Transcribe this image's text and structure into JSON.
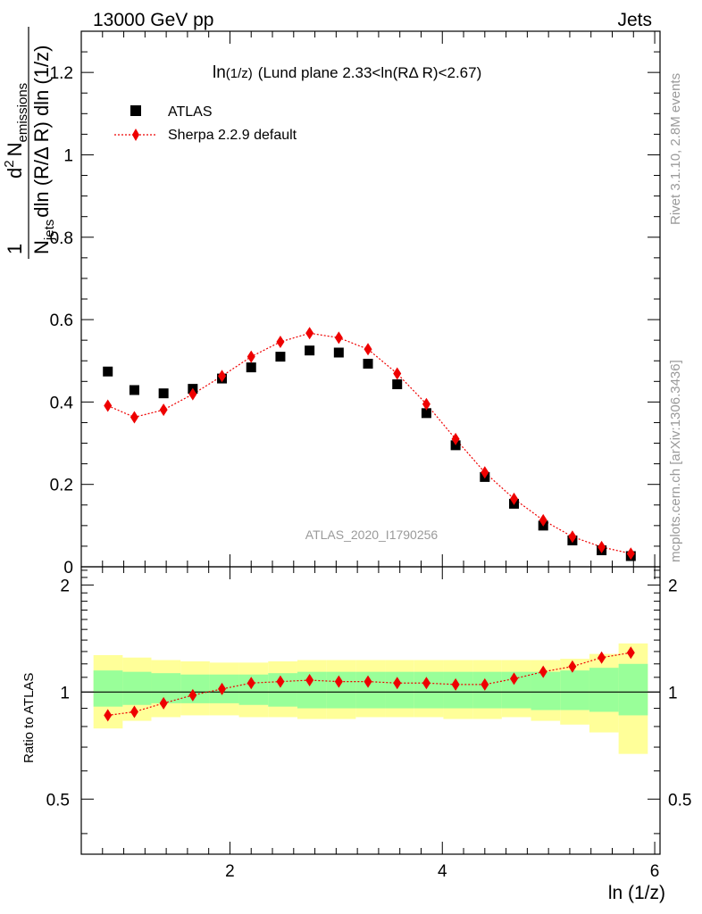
{
  "header": {
    "left": "13000 GeV pp",
    "right": "Jets"
  },
  "side": {
    "rivet": "Rivet 3.1.10,  2.8M events",
    "mcplots": "mcplots.cern.ch [arXiv:1306.3436]"
  },
  "chart_data": [
    {
      "type": "scatter",
      "title": "ln(1/z) (Lund plane 2.33<ln(RΔ R)<2.67)",
      "title_main": "ln",
      "title_sub": "(1/z)",
      "title_rest": "(Lund plane 2.33<ln(RΔ R)<2.67)",
      "xlabel": "ln (1/z)",
      "ylabel": {
        "one": "1",
        "njets": "N",
        "njets_sub": "jets",
        "den": "dln (R/Δ R) dln (1/z)",
        "num": "d",
        "num_sup": "2",
        "num_n": "N",
        "num_sub": "emissions"
      },
      "xlim": [
        0.6,
        6.05
      ],
      "ylim": [
        0,
        1.3
      ],
      "yticks": [
        0,
        0.2,
        0.4,
        0.6,
        0.8,
        1,
        1.2
      ],
      "ytick_labels": [
        "0",
        "0.2",
        "0.4",
        "0.6",
        "0.8",
        "1",
        "1.2"
      ],
      "watermark": "ATLAS_2020_I1790256",
      "legend_position": "top-left",
      "x": [
        0.85,
        1.1,
        1.375,
        1.65,
        1.925,
        2.2,
        2.475,
        2.75,
        3.025,
        3.3,
        3.575,
        3.85,
        4.125,
        4.4,
        4.675,
        4.95,
        5.225,
        5.5,
        5.775
      ],
      "series": [
        {
          "name": "ATLAS",
          "marker": "square",
          "color": "#000000",
          "values": [
            0.474,
            0.429,
            0.421,
            0.432,
            0.457,
            0.484,
            0.51,
            0.525,
            0.52,
            0.493,
            0.443,
            0.373,
            0.295,
            0.218,
            0.153,
            0.1,
            0.064,
            0.04,
            0.026
          ]
        },
        {
          "name": "Sherpa 2.2.9 default",
          "marker": "diamond",
          "color": "#ee0000",
          "values": [
            0.391,
            0.363,
            0.381,
            0.419,
            0.463,
            0.51,
            0.546,
            0.567,
            0.556,
            0.528,
            0.469,
            0.395,
            0.31,
            0.229,
            0.165,
            0.113,
            0.073,
            0.048,
            0.032
          ]
        }
      ]
    },
    {
      "type": "scatter",
      "ylabel": "Ratio to ATLAS",
      "xlabel": "ln (1/z)",
      "xlim": [
        0.6,
        6.05
      ],
      "ylim": [
        0.35,
        2.25
      ],
      "xticks": [
        2,
        4,
        6
      ],
      "xtick_labels": [
        "2",
        "4",
        "6"
      ],
      "yticks_labeled": [
        0.5,
        1,
        2
      ],
      "ytick_labels": [
        "0.5",
        "1",
        "2"
      ],
      "bin_edges": [
        0.715,
        0.99,
        1.26,
        1.535,
        1.81,
        2.085,
        2.36,
        2.635,
        2.91,
        3.185,
        3.46,
        3.735,
        4.01,
        4.285,
        4.56,
        4.835,
        5.11,
        5.385,
        5.66,
        5.935
      ],
      "band_total": {
        "color": "#ffff99",
        "low": [
          0.79,
          0.83,
          0.85,
          0.86,
          0.86,
          0.85,
          0.85,
          0.84,
          0.84,
          0.85,
          0.85,
          0.85,
          0.84,
          0.84,
          0.85,
          0.83,
          0.81,
          0.77,
          0.67
        ],
        "high": [
          1.27,
          1.25,
          1.23,
          1.22,
          1.21,
          1.21,
          1.22,
          1.23,
          1.23,
          1.23,
          1.23,
          1.23,
          1.23,
          1.23,
          1.23,
          1.23,
          1.24,
          1.28,
          1.37
        ]
      },
      "band_stat": {
        "color": "#99ff99",
        "low": [
          0.91,
          0.92,
          0.93,
          0.93,
          0.93,
          0.92,
          0.91,
          0.9,
          0.9,
          0.9,
          0.9,
          0.9,
          0.9,
          0.9,
          0.9,
          0.89,
          0.89,
          0.88,
          0.86
        ],
        "high": [
          1.15,
          1.14,
          1.13,
          1.12,
          1.12,
          1.12,
          1.13,
          1.14,
          1.14,
          1.14,
          1.14,
          1.14,
          1.14,
          1.14,
          1.14,
          1.14,
          1.15,
          1.17,
          1.2
        ]
      },
      "reference_line": 1,
      "x": [
        0.85,
        1.1,
        1.375,
        1.65,
        1.925,
        2.2,
        2.475,
        2.75,
        3.025,
        3.3,
        3.575,
        3.85,
        4.125,
        4.4,
        4.675,
        4.95,
        5.225,
        5.5,
        5.775
      ],
      "series": [
        {
          "name": "Sherpa 2.2.9 default",
          "marker": "diamond",
          "color": "#ee0000",
          "values": [
            0.86,
            0.88,
            0.93,
            0.98,
            1.02,
            1.06,
            1.07,
            1.08,
            1.07,
            1.07,
            1.06,
            1.06,
            1.05,
            1.05,
            1.09,
            1.14,
            1.18,
            1.25,
            1.29
          ]
        }
      ]
    }
  ]
}
